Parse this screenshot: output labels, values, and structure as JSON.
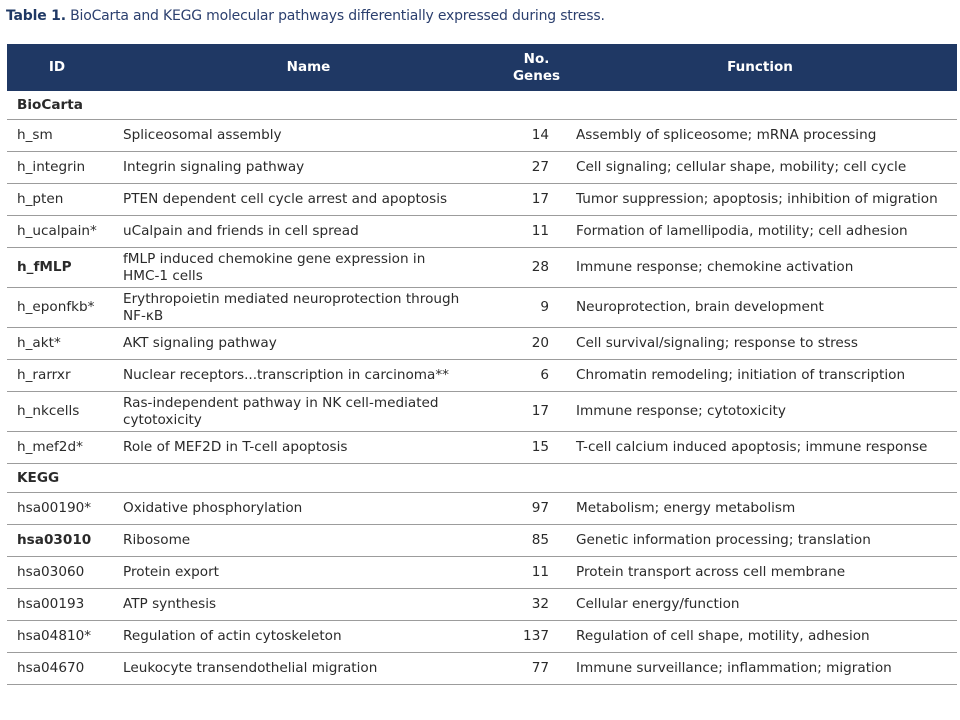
{
  "caption": {
    "label": "Table 1.",
    "text": "BioCarta and KEGG molecular pathways differentially expressed during stress."
  },
  "header": {
    "id": "ID",
    "name": "Name",
    "genes_line1": "No.",
    "genes_line2": "Genes",
    "function": "Function"
  },
  "sections": [
    {
      "title": "BioCarta",
      "rows": [
        {
          "id": "h_sm",
          "bold": false,
          "name_lines": [
            "Spliceosomal assembly"
          ],
          "genes": "14",
          "function": "Assembly of spliceosome; mRNA processing"
        },
        {
          "id": "h_integrin",
          "bold": false,
          "name_lines": [
            "Integrin signaling pathway"
          ],
          "genes": "27",
          "function": "Cell signaling; cellular shape, mobility; cell cycle"
        },
        {
          "id": "h_pten",
          "bold": false,
          "name_lines": [
            "PTEN dependent cell cycle arrest and apoptosis"
          ],
          "genes": "17",
          "function": "Tumor suppression; apoptosis; inhibition of migration"
        },
        {
          "id": "h_ucalpain*",
          "bold": false,
          "name_lines": [
            "uCalpain and friends in cell spread"
          ],
          "genes": "11",
          "function": "Formation of lamellipodia, motility; cell adhesion"
        },
        {
          "id": "h_fMLP",
          "bold": true,
          "name_lines": [
            "fMLP induced chemokine gene expression in",
            "HMC-1 cells"
          ],
          "genes": "28",
          "function": "Immune response; chemokine activation"
        },
        {
          "id": "h_eponfkb*",
          "bold": false,
          "name_lines": [
            "Erythropoietin mediated neuroprotection through",
            "NF-κB"
          ],
          "genes": "9",
          "function": "Neuroprotection, brain development"
        },
        {
          "id": "h_akt*",
          "bold": false,
          "name_lines": [
            "AKT signaling pathway"
          ],
          "genes": "20",
          "function": "Cell survival/signaling; response to stress"
        },
        {
          "id": "h_rarrxr",
          "bold": false,
          "name_lines": [
            "Nuclear receptors...transcription in carcinoma**"
          ],
          "genes": "6",
          "function": "Chromatin remodeling; initiation of transcription"
        },
        {
          "id": "h_nkcells",
          "bold": false,
          "name_lines": [
            "Ras-independent pathway in NK cell-mediated",
            "cytotoxicity"
          ],
          "genes": "17",
          "function": "Immune response; cytotoxicity"
        },
        {
          "id": "h_mef2d*",
          "bold": false,
          "name_lines": [
            "Role of MEF2D in T-cell apoptosis"
          ],
          "genes": "15",
          "function": "T-cell calcium induced apoptosis; immune response"
        }
      ]
    },
    {
      "title": "KEGG",
      "rows": [
        {
          "id": "hsa00190*",
          "bold": false,
          "name_lines": [
            "Oxidative phosphorylation"
          ],
          "genes": "97",
          "function": "Metabolism; energy metabolism"
        },
        {
          "id": "hsa03010",
          "bold": true,
          "name_lines": [
            "Ribosome"
          ],
          "genes": "85",
          "function": "Genetic information processing; translation"
        },
        {
          "id": "hsa03060",
          "bold": false,
          "name_lines": [
            "Protein export"
          ],
          "genes": "11",
          "function": "Protein transport across cell membrane"
        },
        {
          "id": "hsa00193",
          "bold": false,
          "name_lines": [
            "ATP synthesis"
          ],
          "genes": "32",
          "function": "Cellular energy/function"
        },
        {
          "id": "hsa04810*",
          "bold": false,
          "name_lines": [
            "Regulation of actin cytoskeleton"
          ],
          "genes": "137",
          "function": "Regulation of cell shape, motility, adhesion"
        },
        {
          "id": "hsa04670",
          "bold": false,
          "name_lines": [
            "Leukocyte transendothelial migration"
          ],
          "genes": "77",
          "function": "Immune surveillance; inflammation; migration"
        }
      ]
    }
  ],
  "colors": {
    "header_bg": "#1f3864",
    "header_text": "#ffffff",
    "caption": "#1f3864"
  }
}
